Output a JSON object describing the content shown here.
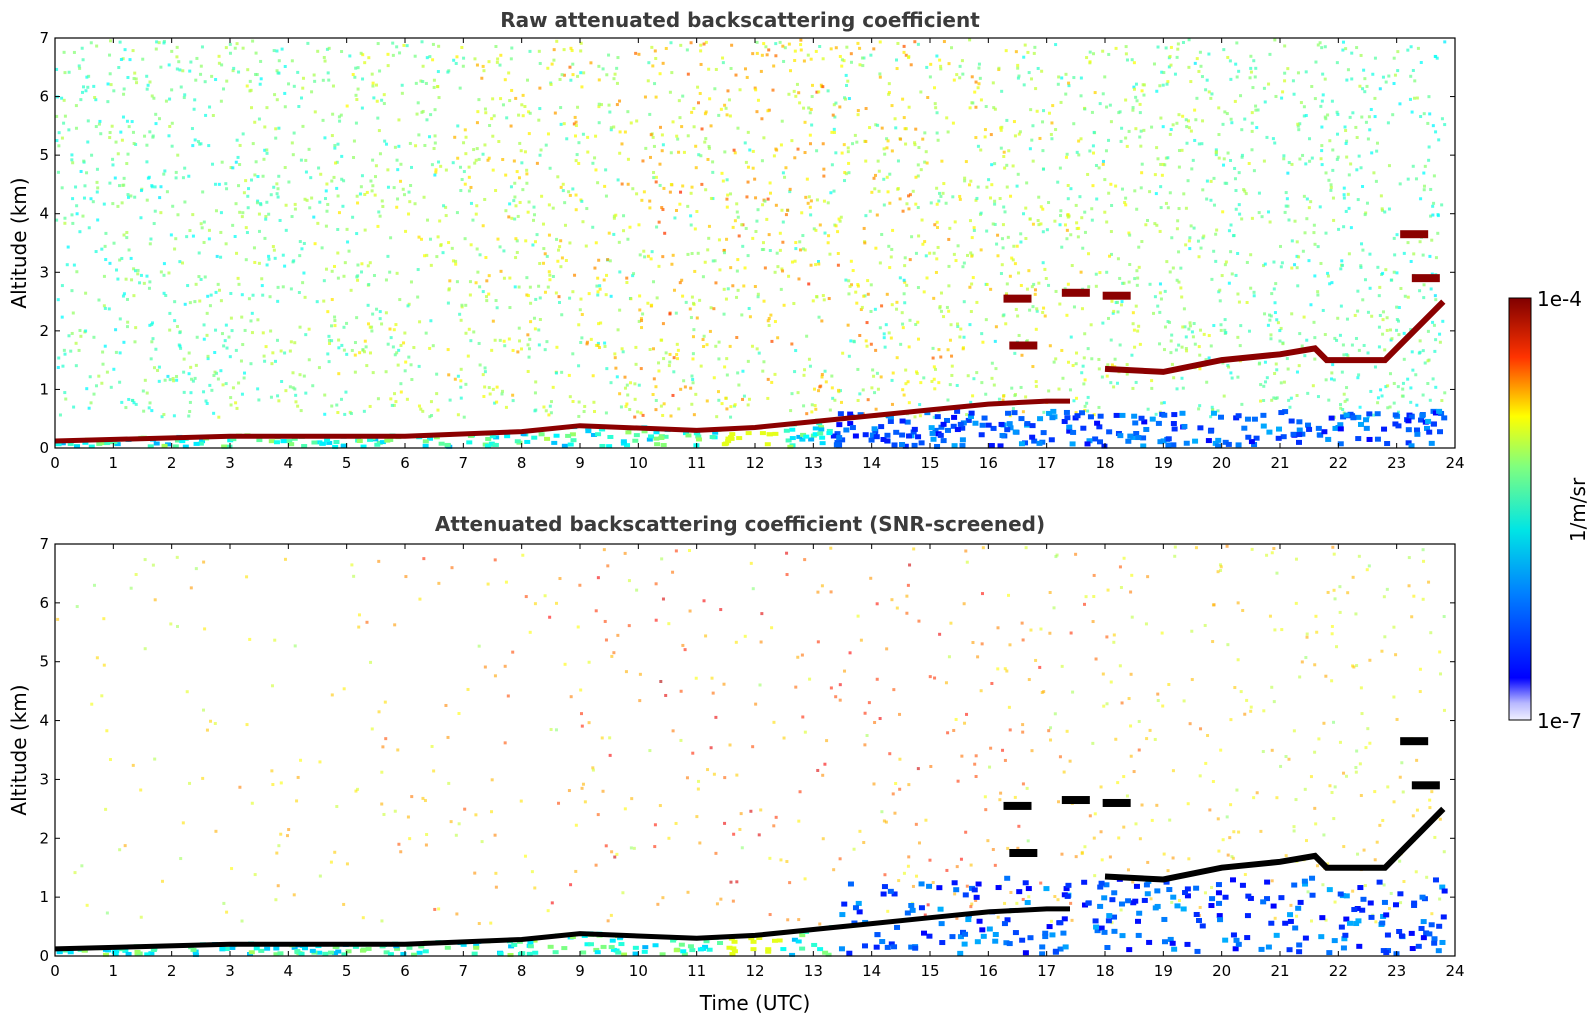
{
  "chart_data": [
    {
      "type": "heatmap",
      "title": "Raw attenuated backscattering coefficient",
      "xlabel": "",
      "ylabel": "Altitude (km)",
      "xlim": [
        0,
        24
      ],
      "ylim": [
        0,
        7
      ],
      "x_ticks": [
        "0",
        "1",
        "2",
        "3",
        "4",
        "5",
        "6",
        "7",
        "8",
        "9",
        "10",
        "11",
        "12",
        "13",
        "14",
        "15",
        "16",
        "17",
        "18",
        "19",
        "20",
        "21",
        "22",
        "23",
        "24"
      ],
      "y_ticks": [
        "0",
        "1",
        "2",
        "3",
        "4",
        "5",
        "6",
        "7"
      ],
      "color_scale": "log",
      "colormap": "jet",
      "screened": false,
      "features": {
        "boundary_layer_top_km": [
          [
            0,
            0.12
          ],
          [
            3,
            0.2
          ],
          [
            6,
            0.2
          ],
          [
            8,
            0.28
          ],
          [
            9,
            0.38
          ],
          [
            11,
            0.3
          ],
          [
            12,
            0.35
          ],
          [
            13,
            0.45
          ],
          [
            14,
            0.55
          ],
          [
            15,
            0.65
          ],
          [
            16,
            0.75
          ],
          [
            17,
            0.8
          ],
          [
            17.4,
            0.8
          ]
        ],
        "elevated_layer_km": [
          [
            18,
            1.35
          ],
          [
            19,
            1.3
          ],
          [
            20,
            1.5
          ],
          [
            21,
            1.6
          ],
          [
            21.6,
            1.7
          ],
          [
            21.8,
            1.5
          ],
          [
            22.8,
            1.5
          ],
          [
            23.8,
            2.5
          ]
        ],
        "cloud_patches_km": [
          [
            17.5,
            2.65
          ],
          [
            18.2,
            2.6
          ],
          [
            16.5,
            2.55
          ],
          [
            23.3,
            3.65
          ],
          [
            23.5,
            2.9
          ],
          [
            16.6,
            1.75
          ]
        ],
        "noise_floor_km": [
          0.5,
          7
        ],
        "dense_signal_region": {
          "x_range": [
            13.3,
            23.8
          ],
          "altitude_km": [
            0,
            0.6
          ]
        }
      }
    },
    {
      "type": "heatmap",
      "title": "Attenuated backscattering coefficient (SNR-screened)",
      "xlabel": "Time (UTC)",
      "ylabel": "Altitude (km)",
      "xlim": [
        0,
        24
      ],
      "ylim": [
        0,
        7
      ],
      "x_ticks": [
        "0",
        "1",
        "2",
        "3",
        "4",
        "5",
        "6",
        "7",
        "8",
        "9",
        "10",
        "11",
        "12",
        "13",
        "14",
        "15",
        "16",
        "17",
        "18",
        "19",
        "20",
        "21",
        "22",
        "23",
        "24"
      ],
      "y_ticks": [
        "0",
        "1",
        "2",
        "3",
        "4",
        "5",
        "6",
        "7"
      ],
      "color_scale": "log",
      "colormap": "jet",
      "screened": true,
      "features": {
        "boundary_layer_top_km": [
          [
            0,
            0.12
          ],
          [
            3,
            0.2
          ],
          [
            6,
            0.2
          ],
          [
            8,
            0.28
          ],
          [
            9,
            0.38
          ],
          [
            11,
            0.3
          ],
          [
            12,
            0.35
          ],
          [
            13,
            0.45
          ],
          [
            14,
            0.55
          ],
          [
            15,
            0.65
          ],
          [
            16,
            0.75
          ],
          [
            17,
            0.8
          ],
          [
            17.4,
            0.8
          ]
        ],
        "elevated_layer_km": [
          [
            18,
            1.35
          ],
          [
            19,
            1.3
          ],
          [
            20,
            1.5
          ],
          [
            21,
            1.6
          ],
          [
            21.6,
            1.7
          ],
          [
            21.8,
            1.5
          ],
          [
            22.8,
            1.5
          ],
          [
            23.8,
            2.5
          ]
        ],
        "cloud_patches_km": [
          [
            17.5,
            2.65
          ],
          [
            18.2,
            2.6
          ],
          [
            16.5,
            2.55
          ],
          [
            23.3,
            3.65
          ],
          [
            23.5,
            2.9
          ],
          [
            16.6,
            1.75
          ]
        ],
        "dense_signal_region": {
          "x_range": [
            13.3,
            23.8
          ],
          "altitude_km": [
            0,
            1.3
          ]
        }
      }
    }
  ],
  "colorbar": {
    "label": "1/m/sr",
    "min_label": "1e-7",
    "max_label": "1e-4",
    "min": 1e-07,
    "max": 0.0001,
    "scale": "log"
  },
  "colors": {
    "title": "#3b3b3b",
    "layer_raw": "#8b0000",
    "layer_screened": "#000000",
    "strong_signal": "#0000ff"
  }
}
